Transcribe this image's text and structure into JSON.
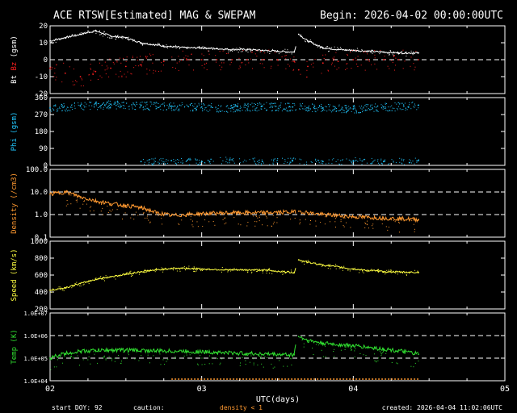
{
  "header": {
    "title": "ACE RTSW[Estimated] MAG & SWEPAM",
    "begin": "Begin: 2026-04-02 00:00:00UTC"
  },
  "footer": {
    "start_doy": "start DOY:  92",
    "caution": "caution:",
    "density_note": "density < 1",
    "created": "created: 2026-04-04 11:02:06UTC"
  },
  "colors": {
    "background": "#000000",
    "axis": "#ffffff",
    "bt": "#ffffff",
    "bz": "#ff2020",
    "phi": "#22c8ff",
    "density": "#ff9930",
    "speed": "#ffff40",
    "temp": "#30e030"
  },
  "chart_data": {
    "type": "line",
    "x_axis": {
      "label": "UTC(days)",
      "range": [
        2,
        5
      ],
      "tick_labels": [
        "02",
        "03",
        "04",
        "05"
      ],
      "data_end": 4.43,
      "data_gap": [
        3.62,
        3.64
      ]
    },
    "panels": [
      {
        "id": "mag",
        "ylabel": [
          "Bt",
          "Bz",
          "(gsm)"
        ],
        "ylim": [
          -20,
          20
        ],
        "ticks": [
          "20",
          "10",
          "0",
          "-10",
          "-20"
        ],
        "tick_values": [
          20,
          10,
          0,
          -10,
          -20
        ],
        "dashed": [
          0
        ],
        "series": [
          {
            "name": "Bt",
            "color": "#ffffff",
            "style": "line",
            "x": [
              2.0,
              2.1,
              2.2,
              2.3,
              2.4,
              2.5,
              2.6,
              2.75,
              2.9,
              3.0,
              3.1,
              3.2,
              3.3,
              3.4,
              3.5,
              3.61,
              3.64,
              3.7,
              3.8,
              3.9,
              4.0,
              4.1,
              4.2,
              4.3,
              4.43
            ],
            "y": [
              11,
              13,
              15,
              17,
              14,
              13,
              10,
              8,
              7,
              7,
              6.5,
              6,
              6,
              5.5,
              5,
              4.5,
              15,
              11,
              7,
              6,
              5.5,
              5,
              4.5,
              4,
              4
            ]
          },
          {
            "name": "Bz",
            "color": "#ff2020",
            "style": "scatter",
            "noise": 6,
            "x": [
              2.0,
              2.1,
              2.2,
              2.3,
              2.4,
              2.5,
              2.6,
              2.75,
              2.9,
              3.0,
              3.1,
              3.2,
              3.3,
              3.4,
              3.5,
              3.61,
              3.64,
              3.7,
              3.8,
              3.9,
              4.0,
              4.1,
              4.2,
              4.3,
              4.43
            ],
            "y": [
              -5,
              -8,
              -10,
              -7,
              -5,
              -4,
              -3,
              -1,
              0,
              0,
              0,
              0,
              0,
              0,
              0,
              -1,
              -6,
              -4,
              -2,
              -1,
              0,
              0,
              0,
              0,
              0
            ]
          }
        ]
      },
      {
        "id": "phi",
        "ylabel": [
          "Phi (gsm)"
        ],
        "ylim": [
          0,
          360
        ],
        "ticks": [
          "360",
          "270",
          "180",
          "90",
          "0"
        ],
        "tick_values": [
          360,
          270,
          180,
          90,
          0
        ],
        "dashed": [],
        "series": [
          {
            "name": "Phi",
            "color": "#22c8ff",
            "style": "scatter",
            "noise": 22,
            "x": [
              2.0,
              2.2,
              2.4,
              2.6,
              2.8,
              3.0,
              3.2,
              3.4,
              3.6,
              3.8,
              4.0,
              4.2,
              4.43
            ],
            "y": [
              305,
              315,
              325,
              320,
              315,
              310,
              305,
              315,
              310,
              305,
              300,
              310,
              320
            ]
          },
          {
            "name": "Phi-low",
            "color": "#22c8ff",
            "style": "scatter",
            "noise": 18,
            "x": [
              2.6,
              2.8,
              3.0,
              3.2,
              3.4,
              3.6,
              3.8,
              4.0,
              4.2,
              4.43
            ],
            "y": [
              20,
              25,
              20,
              30,
              20,
              25,
              20,
              25,
              20,
              25
            ]
          }
        ]
      },
      {
        "id": "density",
        "ylabel": [
          "Density (/cm3)"
        ],
        "ylim": [
          0.1,
          100
        ],
        "log": true,
        "ticks": [
          "100.0",
          "10.0",
          "1.0",
          "0.1"
        ],
        "tick_values": [
          100,
          10,
          1,
          0.1
        ],
        "dashed": [
          10,
          1
        ],
        "series": [
          {
            "name": "Density",
            "color": "#ff9930",
            "style": "line",
            "x": [
              2.0,
              2.1,
              2.2,
              2.3,
              2.4,
              2.5,
              2.6,
              2.7,
              2.8,
              2.9,
              3.0,
              3.2,
              3.4,
              3.6,
              3.64,
              3.7,
              3.8,
              4.0,
              4.2,
              4.43
            ],
            "y": [
              8,
              10,
              6,
              4,
              3,
              2.5,
              2,
              1.2,
              0.9,
              1,
              1.1,
              1.2,
              1.2,
              1.3,
              1.4,
              1.2,
              1.0,
              0.8,
              0.7,
              0.6
            ]
          }
        ]
      },
      {
        "id": "speed",
        "ylabel": [
          "Speed (km/s)"
        ],
        "ylim": [
          200,
          1000
        ],
        "ticks": [
          "1000",
          "800",
          "600",
          "400",
          "200"
        ],
        "tick_values": [
          1000,
          800,
          600,
          400,
          200
        ],
        "dashed": [],
        "series": [
          {
            "name": "Speed",
            "color": "#ffff40",
            "style": "line",
            "x": [
              2.0,
              2.1,
              2.2,
              2.3,
              2.4,
              2.5,
              2.6,
              2.7,
              2.8,
              2.9,
              3.0,
              3.2,
              3.4,
              3.61,
              3.64,
              3.7,
              3.8,
              4.0,
              4.2,
              4.43
            ],
            "y": [
              420,
              450,
              500,
              550,
              580,
              610,
              640,
              660,
              680,
              680,
              670,
              660,
              660,
              630,
              780,
              750,
              720,
              670,
              640,
              630
            ]
          }
        ]
      },
      {
        "id": "temp",
        "ylabel": [
          "Temp (K)"
        ],
        "ylim": [
          10000,
          10000000
        ],
        "log": true,
        "ticks": [
          "1.0E+07",
          "1.0E+06",
          "1.0E+05",
          "1.0E+04"
        ],
        "tick_values": [
          10000000,
          1000000,
          100000,
          10000
        ],
        "dashed": [
          1000000,
          100000
        ],
        "series": [
          {
            "name": "Temp",
            "color": "#30e030",
            "style": "line",
            "x": [
              2.0,
              2.1,
              2.2,
              2.3,
              2.5,
              2.7,
              2.9,
              3.1,
              3.3,
              3.61,
              3.64,
              3.7,
              3.8,
              4.0,
              4.2,
              4.43
            ],
            "y": [
              100000,
              160000,
              200000,
              220000,
              230000,
              210000,
              200000,
              180000,
              160000,
              140000,
              900000,
              600000,
              450000,
              350000,
              250000,
              150000
            ]
          }
        ]
      }
    ]
  }
}
